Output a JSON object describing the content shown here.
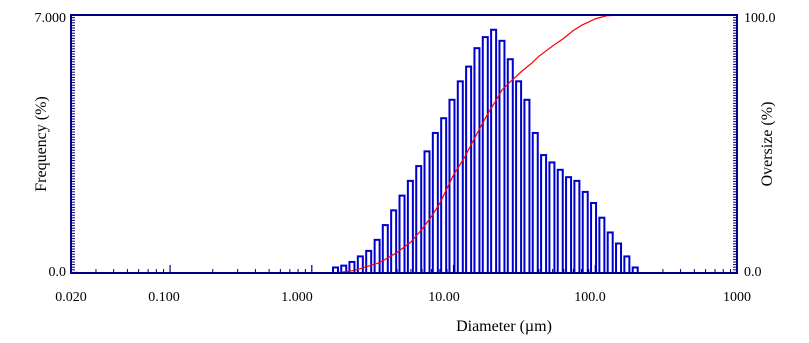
{
  "chart_data": {
    "type": "bar",
    "title": "",
    "xlabel": "Diameter (µm)",
    "ylabel_left": "Frequency (%)",
    "ylabel_right": "Oversize (%)",
    "x_scale": "log",
    "xlim": [
      0.02,
      1000
    ],
    "ylim_left": [
      0,
      7
    ],
    "ylim_right": [
      0,
      100
    ],
    "x_tick_labels": [
      "0.020",
      "0.100",
      "1.000",
      "10.00",
      "100.0",
      "1000"
    ],
    "x_tick_values": [
      0.02,
      0.1,
      1,
      10,
      100,
      1000
    ],
    "y_left_tick_labels": [
      "0.0",
      "7.000"
    ],
    "y_right_tick_labels": [
      "0.0",
      "100.0"
    ],
    "grid": false,
    "colors": {
      "bars": "#0000cc",
      "curve": "#ff0000",
      "frame": "#000080"
    },
    "series": [
      {
        "type": "bar",
        "axis": "left",
        "diameters": [
          1.47,
          1.68,
          1.92,
          2.2,
          2.52,
          2.89,
          3.3,
          3.78,
          4.33,
          4.96,
          5.68,
          6.5,
          7.44,
          8.52,
          9.75,
          11.16,
          12.78,
          14.63,
          16.75,
          19.18,
          21.96,
          25.14,
          28.78,
          32.95,
          37.72,
          43.19,
          49.45,
          56.61,
          64.81,
          74.2,
          84.95,
          97.26,
          111.35,
          127.48,
          145.95,
          167.09,
          191.3
        ],
        "values": [
          0.15,
          0.2,
          0.3,
          0.45,
          0.6,
          0.9,
          1.3,
          1.7,
          2.1,
          2.5,
          2.9,
          3.3,
          3.8,
          4.2,
          4.7,
          5.2,
          5.6,
          6.1,
          6.4,
          6.6,
          6.3,
          5.8,
          5.2,
          4.7,
          3.8,
          3.2,
          3.0,
          2.8,
          2.6,
          2.5,
          2.2,
          1.9,
          1.5,
          1.1,
          0.8,
          0.45,
          0.15
        ]
      },
      {
        "type": "line",
        "axis": "right",
        "x": [
          1.47,
          2.0,
          3.0,
          4.0,
          5.0,
          6.0,
          7.0,
          8.0,
          10.0,
          12.0,
          14.0,
          16.0,
          18.0,
          20.0,
          22.0,
          25.0,
          30.0,
          35.0,
          40.0,
          50.0,
          60.0,
          70.0,
          80.0,
          100.0,
          120.0,
          150.0
        ],
        "y": [
          0.0,
          1.0,
          4.0,
          8.0,
          12.0,
          17.0,
          22.0,
          27.0,
          38.0,
          45.0,
          52.0,
          58.0,
          63.0,
          67.0,
          71.0,
          74.0,
          78.0,
          81.0,
          84.0,
          88.0,
          91.0,
          94.0,
          96.0,
          98.5,
          99.7,
          100.0
        ]
      }
    ]
  }
}
